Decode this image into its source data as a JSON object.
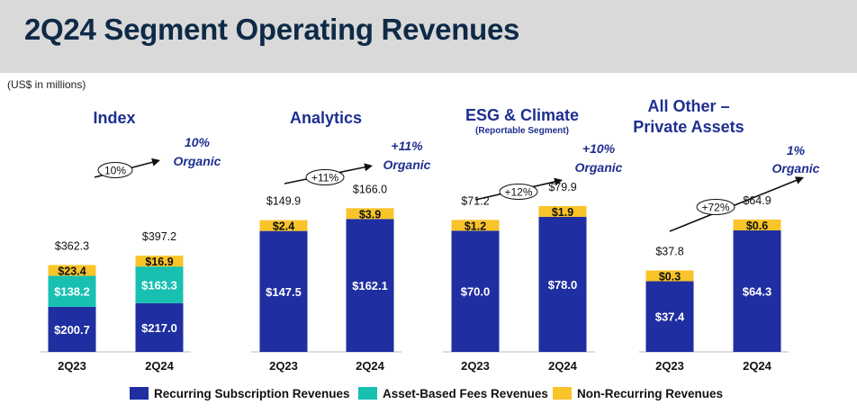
{
  "page": {
    "title": "2Q24 Segment Operating Revenues",
    "units_note": "(US$ in millions)"
  },
  "colors": {
    "recurring": "#1f2ea0",
    "asset_based": "#17c0b0",
    "non_recurring": "#f9c42a",
    "title_blue": "#1e2f8f",
    "header_bg": "#d9d9d9"
  },
  "legend": [
    {
      "label": "Recurring Subscription Revenues",
      "color_key": "recurring"
    },
    {
      "label": "Asset-Based Fees Revenues",
      "color_key": "asset_based"
    },
    {
      "label": "Non-Recurring Revenues",
      "color_key": "non_recurring"
    }
  ],
  "chart_data": [
    {
      "type": "bar",
      "stacked": true,
      "title": "Index",
      "subtitle": "",
      "categories": [
        "2Q23",
        "2Q24"
      ],
      "series": [
        {
          "name": "Recurring Subscription Revenues",
          "values": [
            200.7,
            217.0
          ],
          "labels": [
            "$200.7",
            "$217.0"
          ]
        },
        {
          "name": "Asset-Based Fees Revenues",
          "values": [
            138.2,
            163.3
          ],
          "labels": [
            "$138.2",
            "$163.3"
          ]
        },
        {
          "name": "Non-Recurring Revenues",
          "values": [
            23.4,
            16.9
          ],
          "labels": [
            "$23.4",
            "$16.9"
          ]
        }
      ],
      "totals": [
        "$362.3",
        "$397.2"
      ],
      "growth_label": "+10%",
      "growth_label_full": "10%",
      "organic_line1": "10%",
      "organic_line2": "Organic"
    },
    {
      "type": "bar",
      "stacked": true,
      "title": "Analytics",
      "subtitle": "",
      "categories": [
        "2Q23",
        "2Q24"
      ],
      "series": [
        {
          "name": "Recurring Subscription Revenues",
          "values": [
            147.5,
            162.1
          ],
          "labels": [
            "$147.5",
            "$162.1"
          ]
        },
        {
          "name": "Asset-Based Fees Revenues",
          "values": [
            0,
            0
          ],
          "labels": [
            "",
            ""
          ]
        },
        {
          "name": "Non-Recurring Revenues",
          "values": [
            2.4,
            3.9
          ],
          "labels": [
            "$2.4",
            "$3.9"
          ]
        }
      ],
      "totals": [
        "$149.9",
        "$166.0"
      ],
      "growth_label_full": "+11%",
      "organic_line1": "+11%",
      "organic_line2": "Organic"
    },
    {
      "type": "bar",
      "stacked": true,
      "title": "ESG & Climate",
      "subtitle": "(Reportable Segment)",
      "categories": [
        "2Q23",
        "2Q24"
      ],
      "series": [
        {
          "name": "Recurring Subscription Revenues",
          "values": [
            70.0,
            78.0
          ],
          "labels": [
            "$70.0",
            "$78.0"
          ]
        },
        {
          "name": "Asset-Based Fees Revenues",
          "values": [
            0,
            0
          ],
          "labels": [
            "",
            ""
          ]
        },
        {
          "name": "Non-Recurring Revenues",
          "values": [
            1.2,
            1.9
          ],
          "labels": [
            "$1.2",
            "$1.9"
          ]
        }
      ],
      "totals": [
        "$71.2",
        "$79.9"
      ],
      "growth_label_full": "+12%",
      "organic_line1": "+10%",
      "organic_line2": "Organic"
    },
    {
      "type": "bar",
      "stacked": true,
      "title": "All Other – Private Assets",
      "subtitle": "",
      "title_line1": "All Other –",
      "title_line2": "Private Assets",
      "categories": [
        "2Q23",
        "2Q24"
      ],
      "series": [
        {
          "name": "Recurring Subscription Revenues",
          "values": [
            37.4,
            64.3
          ],
          "labels": [
            "$37.4",
            "$64.3"
          ]
        },
        {
          "name": "Asset-Based Fees Revenues",
          "values": [
            0,
            0
          ],
          "labels": [
            "",
            ""
          ]
        },
        {
          "name": "Non-Recurring Revenues",
          "values": [
            0.3,
            0.6
          ],
          "labels": [
            "$0.3",
            "$0.6"
          ]
        }
      ],
      "totals": [
        "$37.8",
        "$64.9"
      ],
      "growth_label_full": "+72%",
      "organic_line1": "1%",
      "organic_line2": "Organic"
    }
  ]
}
